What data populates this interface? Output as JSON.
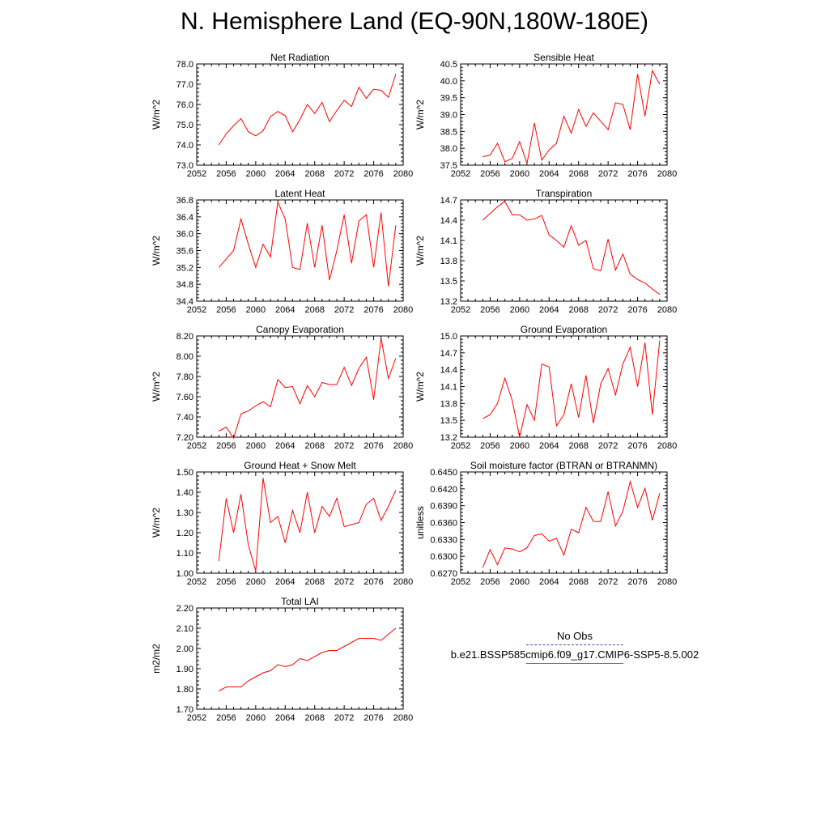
{
  "title": "N. Hemisphere Land (EQ-90N,180W-180E)",
  "colors": {
    "model": "#ff0000",
    "obs": "#4a4aa0",
    "axis": "#000000"
  },
  "legend": {
    "obs_label": "No Obs",
    "model_label": "b.e21.BSSP585cmip6.f09_g17.CMIP6-SSP5-8.5.002"
  },
  "chart_data": [
    {
      "type": "line",
      "title": "Net Radiation",
      "ylabel": "W/m^2",
      "xlim": [
        2052,
        2080
      ],
      "ylim": [
        73.0,
        78.0
      ],
      "xticks": [
        2052,
        2056,
        2060,
        2064,
        2068,
        2072,
        2076,
        2080
      ],
      "yticks": [
        "73.0",
        "74.0",
        "75.0",
        "76.0",
        "77.0",
        "78.0"
      ],
      "x": [
        2055,
        2056,
        2057,
        2058,
        2059,
        2060,
        2061,
        2062,
        2063,
        2064,
        2065,
        2066,
        2067,
        2068,
        2069,
        2070,
        2071,
        2072,
        2073,
        2074,
        2075,
        2076,
        2077,
        2078,
        2079
      ],
      "series": [
        {
          "values": [
            74.0,
            74.55,
            74.95,
            75.3,
            74.65,
            74.45,
            74.7,
            75.4,
            75.65,
            75.45,
            74.65,
            75.25,
            76.0,
            75.55,
            76.1,
            75.15,
            75.7,
            76.2,
            75.9,
            76.85,
            76.3,
            76.75,
            76.7,
            76.35,
            77.5
          ]
        }
      ]
    },
    {
      "type": "line",
      "title": "Sensible Heat",
      "ylabel": "W/m^2",
      "xlim": [
        2052,
        2080
      ],
      "ylim": [
        37.5,
        40.5
      ],
      "xticks": [
        2052,
        2056,
        2060,
        2064,
        2068,
        2072,
        2076,
        2080
      ],
      "yticks": [
        "37.5",
        "38.0",
        "38.5",
        "39.0",
        "39.5",
        "40.0",
        "40.5"
      ],
      "x": [
        2055,
        2056,
        2057,
        2058,
        2059,
        2060,
        2061,
        2062,
        2063,
        2064,
        2065,
        2066,
        2067,
        2068,
        2069,
        2070,
        2071,
        2072,
        2073,
        2074,
        2075,
        2076,
        2077,
        2078,
        2079
      ],
      "series": [
        {
          "values": [
            37.75,
            37.8,
            38.15,
            37.6,
            37.7,
            38.2,
            37.55,
            38.75,
            37.65,
            37.95,
            38.15,
            38.95,
            38.45,
            39.15,
            38.65,
            39.05,
            38.8,
            38.55,
            39.35,
            39.3,
            38.55,
            40.2,
            38.95,
            40.3,
            39.9
          ]
        }
      ]
    },
    {
      "type": "line",
      "title": "Latent Heat",
      "ylabel": "W/m^2",
      "xlim": [
        2052,
        2080
      ],
      "ylim": [
        34.4,
        36.8
      ],
      "xticks": [
        2052,
        2056,
        2060,
        2064,
        2068,
        2072,
        2076,
        2080
      ],
      "yticks": [
        "34.4",
        "34.8",
        "35.2",
        "35.6",
        "36.0",
        "36.4",
        "36.8"
      ],
      "x": [
        2055,
        2056,
        2057,
        2058,
        2059,
        2060,
        2061,
        2062,
        2063,
        2064,
        2065,
        2066,
        2067,
        2068,
        2069,
        2070,
        2071,
        2072,
        2073,
        2074,
        2075,
        2076,
        2077,
        2078,
        2079
      ],
      "series": [
        {
          "values": [
            35.2,
            35.4,
            35.6,
            36.35,
            35.75,
            35.2,
            35.75,
            35.45,
            36.75,
            36.35,
            35.2,
            35.15,
            36.25,
            35.2,
            36.2,
            34.9,
            35.6,
            36.45,
            35.3,
            36.3,
            36.45,
            35.2,
            36.5,
            34.75,
            36.2
          ]
        }
      ]
    },
    {
      "type": "line",
      "title": "Transpiration",
      "ylabel": "W/m^2",
      "xlim": [
        2052,
        2080
      ],
      "ylim": [
        13.2,
        14.7
      ],
      "xticks": [
        2052,
        2056,
        2060,
        2064,
        2068,
        2072,
        2076,
        2080
      ],
      "yticks": [
        "13.2",
        "13.5",
        "13.8",
        "14.1",
        "14.4",
        "14.7"
      ],
      "x": [
        2055,
        2056,
        2057,
        2058,
        2059,
        2060,
        2061,
        2062,
        2063,
        2064,
        2065,
        2066,
        2067,
        2068,
        2069,
        2070,
        2071,
        2072,
        2073,
        2074,
        2075,
        2076,
        2077,
        2078,
        2079
      ],
      "series": [
        {
          "values": [
            14.4,
            14.5,
            14.6,
            14.68,
            14.48,
            14.48,
            14.4,
            14.42,
            14.47,
            14.18,
            14.1,
            14.0,
            14.32,
            14.03,
            14.1,
            13.68,
            13.65,
            14.12,
            13.66,
            13.9,
            13.6,
            13.52,
            13.47,
            13.38,
            13.3
          ]
        }
      ]
    },
    {
      "type": "line",
      "title": "Canopy Evaporation",
      "ylabel": "W/m^2",
      "xlim": [
        2052,
        2080
      ],
      "ylim": [
        7.2,
        8.2
      ],
      "xticks": [
        2052,
        2056,
        2060,
        2064,
        2068,
        2072,
        2076,
        2080
      ],
      "yticks": [
        "7.20",
        "7.40",
        "7.60",
        "7.80",
        "8.00",
        "8.20"
      ],
      "x": [
        2055,
        2056,
        2057,
        2058,
        2059,
        2060,
        2061,
        2062,
        2063,
        2064,
        2065,
        2066,
        2067,
        2068,
        2069,
        2070,
        2071,
        2072,
        2073,
        2074,
        2075,
        2076,
        2077,
        2078,
        2079
      ],
      "series": [
        {
          "values": [
            7.26,
            7.3,
            7.19,
            7.43,
            7.46,
            7.51,
            7.55,
            7.5,
            7.77,
            7.69,
            7.7,
            7.53,
            7.71,
            7.6,
            7.74,
            7.72,
            7.72,
            7.89,
            7.71,
            7.88,
            7.99,
            7.57,
            8.18,
            7.78,
            7.98
          ]
        }
      ]
    },
    {
      "type": "line",
      "title": "Ground Evaporation",
      "ylabel": "W/m^2",
      "xlim": [
        2052,
        2080
      ],
      "ylim": [
        13.2,
        15.0
      ],
      "xticks": [
        2052,
        2056,
        2060,
        2064,
        2068,
        2072,
        2076,
        2080
      ],
      "yticks": [
        "13.2",
        "13.5",
        "13.8",
        "14.1",
        "14.4",
        "14.7",
        "15.0"
      ],
      "x": [
        2055,
        2056,
        2057,
        2058,
        2059,
        2060,
        2061,
        2062,
        2063,
        2064,
        2065,
        2066,
        2067,
        2068,
        2069,
        2070,
        2071,
        2072,
        2073,
        2074,
        2075,
        2076,
        2077,
        2078,
        2079
      ],
      "series": [
        {
          "values": [
            13.53,
            13.6,
            13.8,
            14.25,
            13.85,
            13.2,
            13.78,
            13.5,
            14.5,
            14.45,
            13.4,
            13.6,
            14.15,
            13.55,
            14.3,
            13.45,
            14.15,
            14.42,
            13.95,
            14.5,
            14.8,
            14.1,
            14.88,
            13.6,
            14.92
          ]
        }
      ]
    },
    {
      "type": "line",
      "title": "Ground Heat + Snow Melt",
      "ylabel": "W/m^2",
      "xlim": [
        2052,
        2080
      ],
      "ylim": [
        1.0,
        1.5
      ],
      "xticks": [
        2052,
        2056,
        2060,
        2064,
        2068,
        2072,
        2076,
        2080
      ],
      "yticks": [
        "1.00",
        "1.10",
        "1.20",
        "1.30",
        "1.40",
        "1.50"
      ],
      "x": [
        2055,
        2056,
        2057,
        2058,
        2059,
        2060,
        2061,
        2062,
        2063,
        2064,
        2065,
        2066,
        2067,
        2068,
        2069,
        2070,
        2071,
        2072,
        2073,
        2074,
        2075,
        2076,
        2077,
        2078,
        2079
      ],
      "series": [
        {
          "values": [
            1.06,
            1.37,
            1.2,
            1.39,
            1.14,
            1.01,
            1.47,
            1.25,
            1.28,
            1.15,
            1.31,
            1.2,
            1.4,
            1.2,
            1.33,
            1.28,
            1.37,
            1.23,
            1.24,
            1.25,
            1.34,
            1.37,
            1.26,
            1.33,
            1.41
          ]
        }
      ]
    },
    {
      "type": "line",
      "title": "Soil moisture factor (BTRAN or BTRANMN)",
      "ylabel": "unitless",
      "xlim": [
        2052,
        2080
      ],
      "ylim": [
        0.627,
        0.645
      ],
      "xticks": [
        2052,
        2056,
        2060,
        2064,
        2068,
        2072,
        2076,
        2080
      ],
      "yticks": [
        "0.6270",
        "0.6300",
        "0.6330",
        "0.6360",
        "0.6390",
        "0.6420",
        "0.6450"
      ],
      "x": [
        2055,
        2056,
        2057,
        2058,
        2059,
        2060,
        2061,
        2062,
        2063,
        2064,
        2065,
        2066,
        2067,
        2068,
        2069,
        2070,
        2071,
        2072,
        2073,
        2074,
        2075,
        2076,
        2077,
        2078,
        2079
      ],
      "series": [
        {
          "values": [
            0.628,
            0.6312,
            0.6285,
            0.6315,
            0.6313,
            0.6308,
            0.6315,
            0.6337,
            0.634,
            0.6327,
            0.6332,
            0.6302,
            0.6348,
            0.6342,
            0.6387,
            0.6362,
            0.6362,
            0.6415,
            0.6354,
            0.638,
            0.6433,
            0.6387,
            0.6421,
            0.6364,
            0.6412
          ]
        }
      ]
    },
    {
      "type": "line",
      "title": "Total LAI",
      "ylabel": "m2/m2",
      "xlim": [
        2052,
        2080
      ],
      "ylim": [
        1.7,
        2.2
      ],
      "xticks": [
        2052,
        2056,
        2060,
        2064,
        2068,
        2072,
        2076,
        2080
      ],
      "yticks": [
        "1.70",
        "1.80",
        "1.90",
        "2.00",
        "2.10",
        "2.20"
      ],
      "x": [
        2055,
        2056,
        2057,
        2058,
        2059,
        2060,
        2061,
        2062,
        2063,
        2064,
        2065,
        2066,
        2067,
        2068,
        2069,
        2070,
        2071,
        2072,
        2073,
        2074,
        2075,
        2076,
        2077,
        2078,
        2079
      ],
      "series": [
        {
          "values": [
            1.79,
            1.81,
            1.81,
            1.81,
            1.84,
            1.86,
            1.88,
            1.89,
            1.92,
            1.91,
            1.92,
            1.95,
            1.94,
            1.96,
            1.98,
            1.99,
            1.99,
            2.01,
            2.03,
            2.05,
            2.05,
            2.05,
            2.04,
            2.07,
            2.1
          ]
        }
      ]
    }
  ]
}
